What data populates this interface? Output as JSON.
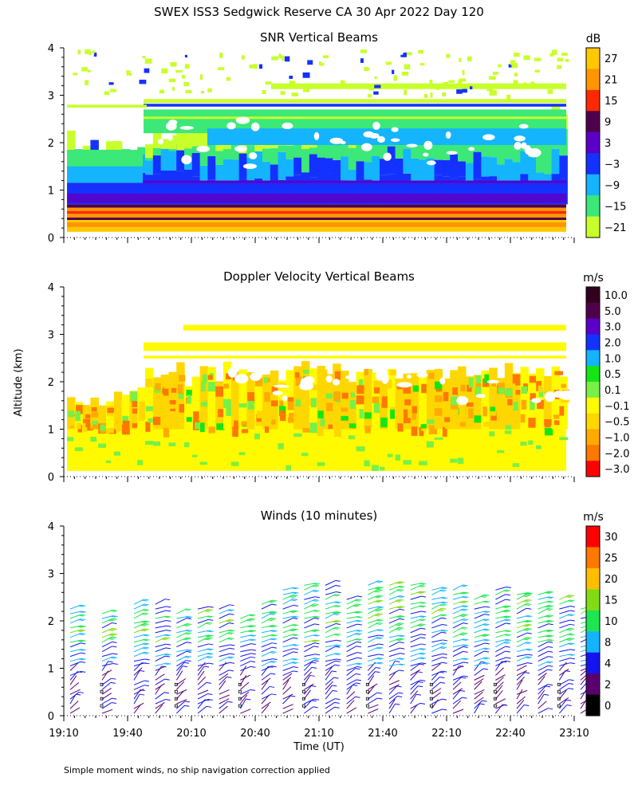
{
  "header": {
    "title": "SWEX ISS3 Sedgwick Reserve CA  30 Apr 2022 Day 120",
    "ylabel": "Altitude (km)",
    "xlabel": "Time (UT)",
    "footnote": "Simple moment winds, no ship navigation correction applied"
  },
  "chart_data": [
    {
      "type": "heatmap",
      "title": "SNR Vertical Beams",
      "colorbar": {
        "unit": "dB",
        "labels": [
          "27",
          "21",
          "15",
          "9",
          "3",
          "−3",
          "−9",
          "−15",
          "−21"
        ],
        "colors": [
          "#ffc800",
          "#ff9600",
          "#ff2800",
          "#50004a",
          "#5a00c8",
          "#1432ff",
          "#14b4ff",
          "#3ce878",
          "#c8ff2a"
        ]
      },
      "x_ticks": [
        "19:10",
        "19:40",
        "20:10",
        "20:40",
        "21:10",
        "21:40",
        "22:10",
        "22:40",
        "23:10"
      ],
      "y_ticks": [
        "0",
        "1",
        "2",
        "3",
        "4"
      ],
      "ylim": [
        0,
        4
      ],
      "profile_snr": [
        {
          "alt": 0.25,
          "db": 24
        },
        {
          "alt": 0.4,
          "db": 12
        },
        {
          "alt": 0.55,
          "db": 20
        },
        {
          "alt": 0.7,
          "db": 9
        },
        {
          "alt": 0.9,
          "db": 3
        },
        {
          "alt": 1.1,
          "db": -3
        },
        {
          "alt": 1.3,
          "db": -9
        },
        {
          "alt": 1.6,
          "db": -12
        },
        {
          "alt": 2.0,
          "db": -15
        },
        {
          "alt": 2.3,
          "db": -15
        },
        {
          "alt": 2.5,
          "db": -18
        },
        {
          "alt": 2.78,
          "db": -3
        },
        {
          "alt": 3.2,
          "db": -21
        }
      ]
    },
    {
      "type": "heatmap",
      "title": "Doppler Velocity Vertical Beams",
      "colorbar": {
        "unit": "m/s",
        "labels": [
          "10.0",
          "5.0",
          "3.0",
          "2.0",
          "1.0",
          "0.5",
          "0.1",
          "−0.1",
          "−0.5",
          "−1.0",
          "−2.0",
          "−3.0"
        ],
        "colors": [
          "#32001e",
          "#50004a",
          "#5a00c8",
          "#1432ff",
          "#14b4ff",
          "#14e614",
          "#78f046",
          "#fffa00",
          "#ffd700",
          "#ffaa00",
          "#ff7800",
          "#ff0000"
        ]
      },
      "x_ticks": [
        "19:10",
        "19:40",
        "20:10",
        "20:40",
        "21:10",
        "21:40",
        "22:10",
        "22:40",
        "23:10"
      ],
      "y_ticks": [
        "0",
        "1",
        "2",
        "3",
        "4"
      ],
      "ylim": [
        0,
        4
      ]
    },
    {
      "type": "scatter",
      "title": "Winds (10 minutes)",
      "colorbar": {
        "unit": "m/s",
        "labels": [
          "30",
          "25",
          "20",
          "15",
          "10",
          "8",
          "4",
          "2",
          "0"
        ],
        "colors": [
          "#ff0000",
          "#ff7800",
          "#ffbe00",
          "#82dc14",
          "#1ee650",
          "#14b4ff",
          "#1414f0",
          "#5a006e",
          "#000000"
        ]
      },
      "x_ticks": [
        "19:10",
        "19:40",
        "20:10",
        "20:40",
        "21:10",
        "21:40",
        "22:10",
        "22:40",
        "23:10"
      ],
      "y_ticks": [
        "0",
        "1",
        "2",
        "3",
        "4"
      ],
      "ylim": [
        0,
        4
      ],
      "xlim_hours": [
        19.1667,
        23.1667
      ],
      "profile_times": [
        "19:10",
        "19:25",
        "19:40",
        "19:50",
        "20:00",
        "20:10",
        "20:20",
        "20:30",
        "20:40",
        "20:50",
        "21:00",
        "21:10",
        "21:20",
        "21:30",
        "21:40",
        "21:50",
        "22:00",
        "22:10",
        "22:20",
        "22:30",
        "22:40",
        "22:50",
        "23:00",
        "23:10"
      ],
      "profile_tops_km": [
        2.3,
        2.2,
        2.4,
        2.4,
        2.2,
        2.3,
        2.3,
        2.1,
        2.4,
        2.7,
        2.8,
        2.8,
        2.5,
        2.8,
        2.8,
        2.8,
        2.7,
        2.7,
        2.5,
        2.7,
        2.6,
        2.6,
        2.5,
        2.3
      ]
    }
  ]
}
